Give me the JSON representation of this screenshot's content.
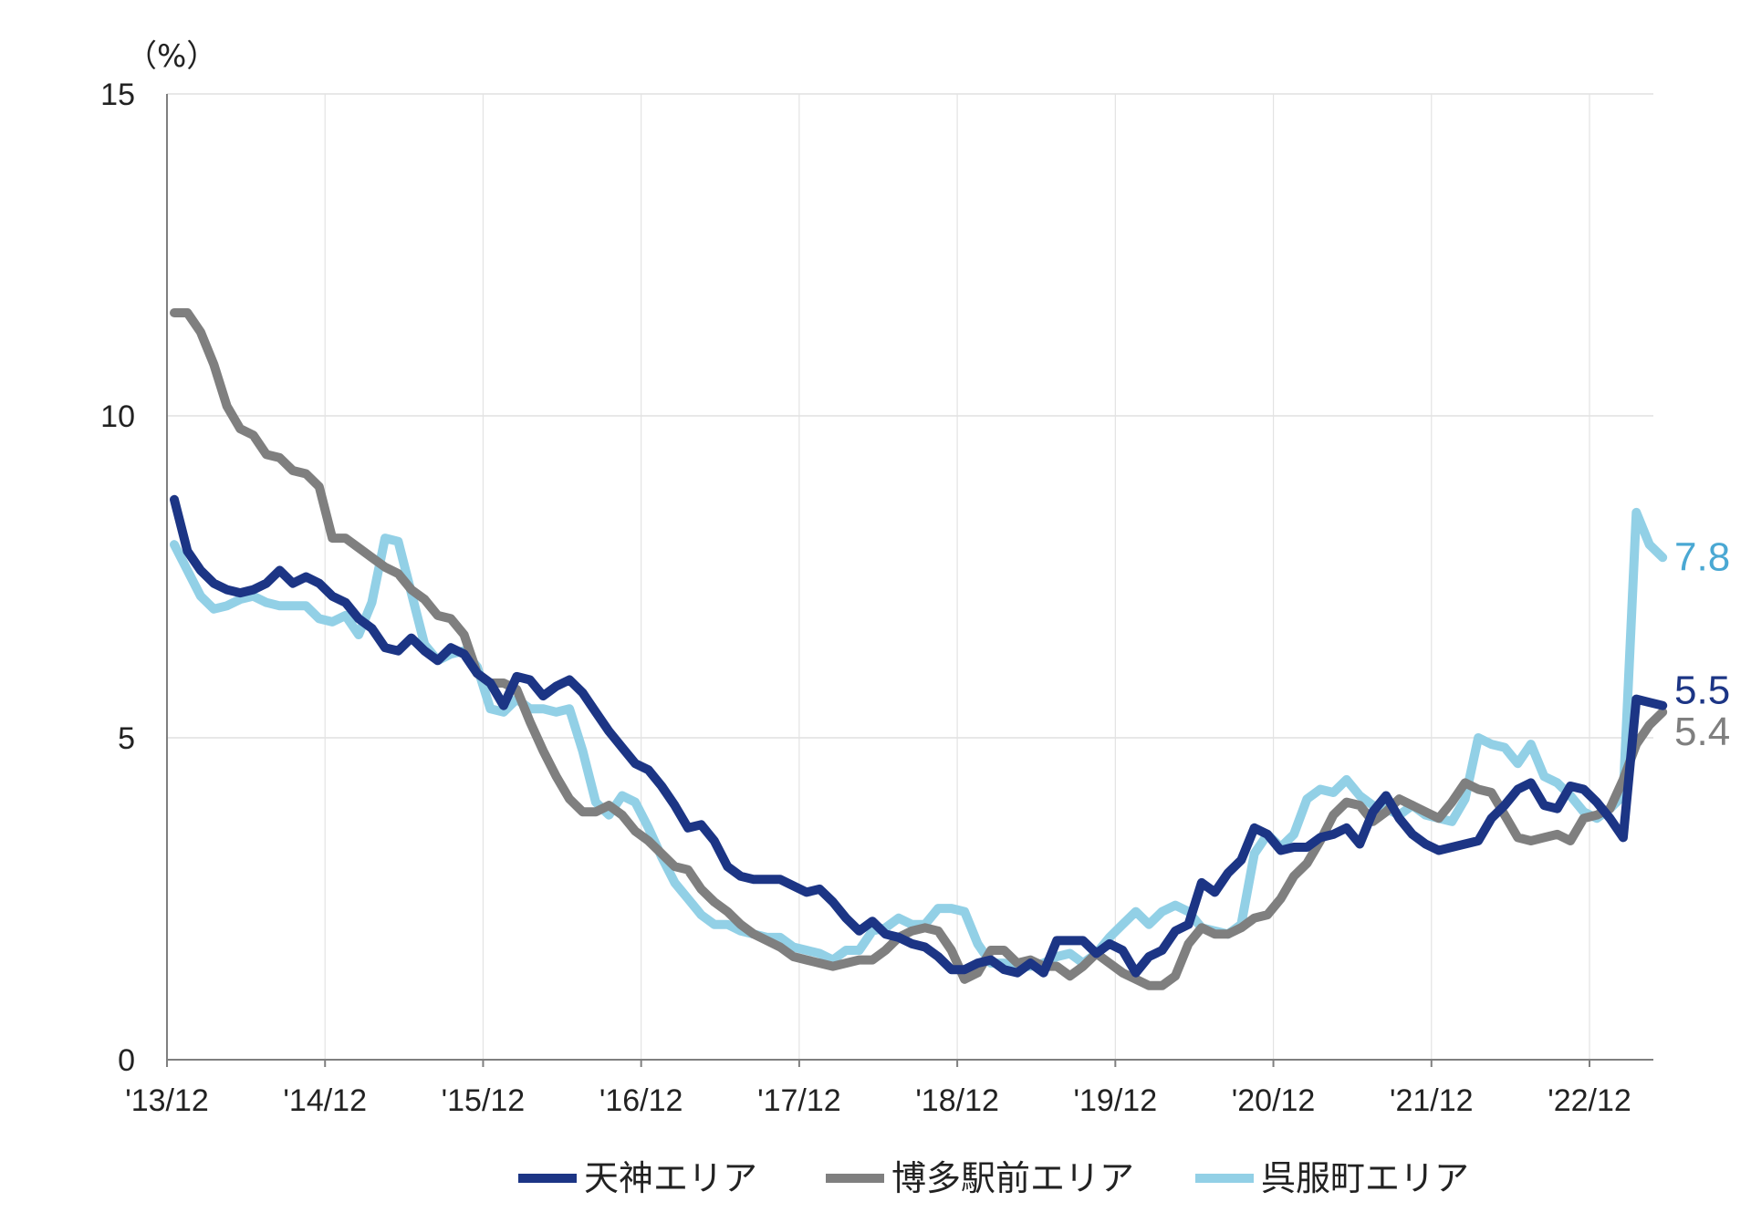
{
  "chart_data": {
    "type": "line",
    "y_unit": "（%）",
    "ylim": [
      0,
      15
    ],
    "y_ticks": [
      "0",
      "5",
      "10",
      "15"
    ],
    "x_ticks": [
      "'13/12",
      "'14/12",
      "'15/12",
      "'16/12",
      "'17/12",
      "'18/12",
      "'19/12",
      "'20/12",
      "'21/12",
      "'22/12"
    ],
    "grid": true,
    "legend_position": "bottom",
    "series": [
      {
        "name": "天神エリア",
        "color": "#1c3585",
        "end_label": "5.5",
        "values": [
          8.7,
          7.9,
          7.6,
          7.4,
          7.3,
          7.25,
          7.3,
          7.4,
          7.6,
          7.4,
          7.5,
          7.4,
          7.2,
          7.1,
          6.85,
          6.7,
          6.4,
          6.35,
          6.55,
          6.35,
          6.2,
          6.4,
          6.3,
          6.0,
          5.85,
          5.5,
          5.95,
          5.9,
          5.65,
          5.8,
          5.9,
          5.7,
          5.4,
          5.1,
          4.85,
          4.6,
          4.5,
          4.25,
          3.95,
          3.6,
          3.65,
          3.4,
          3.0,
          2.85,
          2.8,
          2.8,
          2.8,
          2.7,
          2.6,
          2.65,
          2.45,
          2.2,
          2.0,
          2.15,
          1.95,
          1.9,
          1.8,
          1.75,
          1.6,
          1.4,
          1.4,
          1.5,
          1.55,
          1.4,
          1.35,
          1.5,
          1.35,
          1.85,
          1.85,
          1.85,
          1.65,
          1.8,
          1.7,
          1.35,
          1.6,
          1.7,
          2.0,
          2.1,
          2.75,
          2.6,
          2.9,
          3.1,
          3.6,
          3.5,
          3.25,
          3.3,
          3.3,
          3.45,
          3.5,
          3.6,
          3.35,
          3.85,
          4.1,
          3.75,
          3.5,
          3.35,
          3.25,
          3.3,
          3.35,
          3.4,
          3.75,
          3.95,
          4.2,
          4.3,
          3.95,
          3.9,
          4.25,
          4.2,
          4.0,
          3.75,
          3.45,
          5.6,
          5.55,
          5.5
        ]
      },
      {
        "name": "博多駅前エリア",
        "color": "#7f7f7f",
        "end_label": "5.4",
        "values": [
          11.6,
          11.6,
          11.3,
          10.8,
          10.15,
          9.8,
          9.7,
          9.4,
          9.35,
          9.15,
          9.1,
          8.9,
          8.1,
          8.1,
          7.95,
          7.8,
          7.65,
          7.55,
          7.3,
          7.15,
          6.9,
          6.85,
          6.6,
          6.0,
          5.85,
          5.85,
          5.75,
          5.25,
          4.8,
          4.4,
          4.05,
          3.85,
          3.85,
          3.95,
          3.8,
          3.55,
          3.4,
          3.2,
          3.0,
          2.95,
          2.65,
          2.45,
          2.3,
          2.1,
          1.95,
          1.85,
          1.75,
          1.6,
          1.55,
          1.5,
          1.45,
          1.5,
          1.55,
          1.55,
          1.7,
          1.9,
          2.0,
          2.05,
          2.0,
          1.7,
          1.25,
          1.35,
          1.7,
          1.7,
          1.5,
          1.55,
          1.45,
          1.45,
          1.3,
          1.45,
          1.65,
          1.5,
          1.35,
          1.25,
          1.15,
          1.15,
          1.3,
          1.8,
          2.05,
          1.95,
          1.95,
          2.05,
          2.2,
          2.25,
          2.5,
          2.85,
          3.05,
          3.4,
          3.8,
          4.0,
          3.95,
          3.7,
          3.85,
          4.05,
          3.95,
          3.85,
          3.75,
          4.0,
          4.3,
          4.2,
          4.15,
          3.8,
          3.45,
          3.4,
          3.45,
          3.5,
          3.4,
          3.75,
          3.8,
          3.9,
          4.35,
          4.9,
          5.2,
          5.4
        ]
      },
      {
        "name": "呉服町エリア",
        "color": "#92d0e6",
        "end_label": "7.8",
        "values": [
          8.0,
          7.6,
          7.2,
          7.0,
          7.05,
          7.15,
          7.2,
          7.1,
          7.05,
          7.05,
          7.05,
          6.85,
          6.8,
          6.9,
          6.6,
          7.1,
          8.1,
          8.05,
          7.25,
          6.45,
          6.2,
          6.3,
          6.35,
          6.1,
          5.45,
          5.4,
          5.6,
          5.45,
          5.45,
          5.4,
          5.45,
          4.8,
          4.0,
          3.8,
          4.1,
          4.0,
          3.6,
          3.15,
          2.75,
          2.5,
          2.25,
          2.1,
          2.1,
          2.0,
          1.95,
          1.9,
          1.9,
          1.75,
          1.7,
          1.65,
          1.55,
          1.7,
          1.7,
          2.0,
          2.05,
          2.2,
          2.1,
          2.1,
          2.35,
          2.35,
          2.3,
          1.8,
          1.5,
          1.5,
          1.45,
          1.45,
          1.5,
          1.6,
          1.65,
          1.5,
          1.65,
          1.9,
          2.1,
          2.3,
          2.1,
          2.3,
          2.4,
          2.3,
          2.05,
          2.0,
          1.95,
          2.1,
          3.2,
          3.5,
          3.3,
          3.5,
          4.05,
          4.2,
          4.15,
          4.35,
          4.1,
          3.95,
          3.9,
          3.8,
          3.95,
          3.8,
          3.75,
          3.7,
          4.05,
          5.0,
          4.9,
          4.85,
          4.6,
          4.9,
          4.4,
          4.3,
          4.1,
          3.85,
          3.75,
          3.9,
          4.1,
          8.5,
          8.0,
          7.8
        ]
      }
    ]
  }
}
